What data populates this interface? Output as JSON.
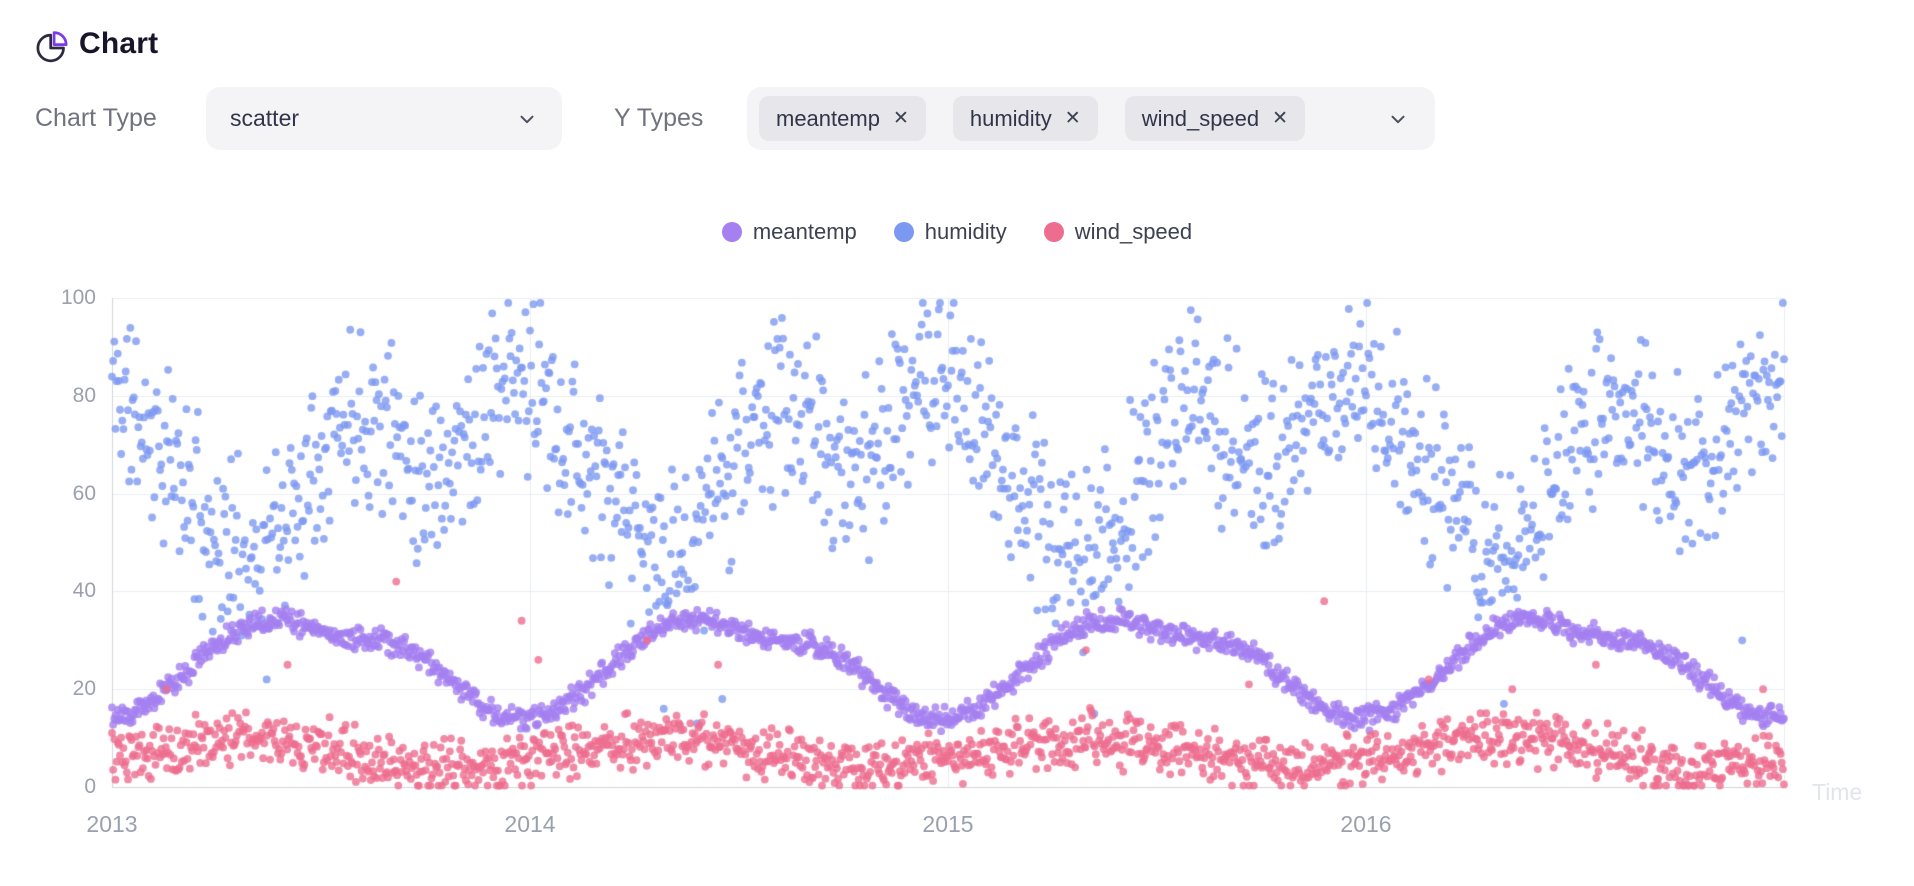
{
  "header": {
    "title": "Chart"
  },
  "controls": {
    "chart_type": {
      "label": "Chart Type",
      "value": "scatter"
    },
    "y_types": {
      "label": "Y Types",
      "tags": [
        "meantemp",
        "humidity",
        "wind_speed"
      ],
      "remove_glyph": "✕"
    }
  },
  "colors": {
    "accent": "#7c3aed",
    "icon_dark": "#2e2a40",
    "grid": "#ebedf1",
    "axis": "#d2d5dc",
    "tick_text": "#9aa0ad"
  },
  "chart_data": {
    "type": "scatter",
    "title": "",
    "xlabel": "Time",
    "ylabel": "",
    "x_ticks": [
      2013,
      2014,
      2015,
      2016
    ],
    "x_range": [
      2013,
      2017
    ],
    "y_ticks": [
      0,
      20,
      40,
      60,
      80,
      100
    ],
    "y_range": [
      0,
      100
    ],
    "grid": true,
    "legend_position": "top-center",
    "sampling": "daily",
    "n_points_per_series": 1461,
    "seed": 11,
    "series": [
      {
        "name": "meantemp",
        "color": "#a480f0",
        "monthly_means": [
          14,
          16.5,
          22.5,
          29,
          33.5,
          34.5,
          31.5,
          30.5,
          29.5,
          26,
          20,
          15
        ],
        "daily_jitter": 1.9,
        "clamp": [
          8,
          42
        ],
        "outliers": []
      },
      {
        "name": "humidity",
        "color": "#7d98f1",
        "monthly_means": [
          83,
          73,
          62,
          50,
          46,
          54,
          71,
          78,
          74,
          64,
          69,
          81
        ],
        "daily_jitter": 15,
        "clamp": [
          12,
          99
        ],
        "outliers": [
          [
            2013.37,
            22
          ],
          [
            2014.32,
            16
          ],
          [
            2014.4,
            13
          ],
          [
            2014.46,
            18
          ],
          [
            2015.35,
            15
          ],
          [
            2016.33,
            17
          ],
          [
            2016.9,
            30
          ]
        ]
      },
      {
        "name": "wind_speed",
        "color": "#ee6d8e",
        "monthly_means": [
          5.5,
          7,
          8.5,
          9.5,
          10,
          9.5,
          8.5,
          7,
          5.5,
          4,
          4,
          5
        ],
        "daily_jitter": 4.5,
        "clamp": [
          0.3,
          45
        ],
        "outliers": [
          [
            2013.13,
            20
          ],
          [
            2013.42,
            25
          ],
          [
            2013.68,
            42
          ],
          [
            2013.98,
            34
          ],
          [
            2014.02,
            26
          ],
          [
            2014.28,
            30
          ],
          [
            2014.45,
            25
          ],
          [
            2015.33,
            28
          ],
          [
            2015.72,
            21
          ],
          [
            2015.9,
            38
          ],
          [
            2016.15,
            22
          ],
          [
            2016.35,
            20
          ],
          [
            2016.55,
            25
          ],
          [
            2016.95,
            20
          ]
        ]
      }
    ]
  }
}
